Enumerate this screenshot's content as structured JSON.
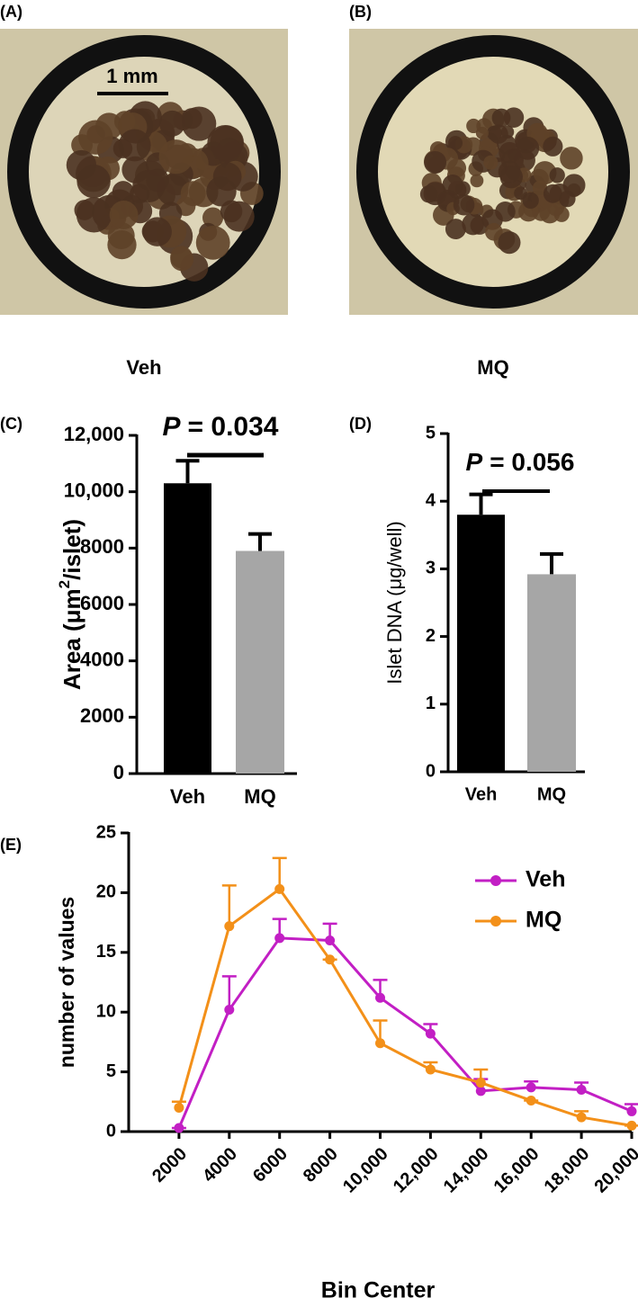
{
  "panels": {
    "a": {
      "label": "(A)",
      "scale_bar": "1 mm",
      "caption": "Veh"
    },
    "b": {
      "label": "(B)",
      "caption": "MQ"
    }
  },
  "chart_data": [
    {
      "type": "bar",
      "panel_label": "(C)",
      "annotation_symbol": "P",
      "annotation": "= 0.034",
      "ylabel": [
        "Area (μm",
        "2",
        "/islet)"
      ],
      "categories": [
        "Veh",
        "MQ"
      ],
      "values": [
        10300,
        7900
      ],
      "errors": [
        800,
        600
      ],
      "colors": [
        "#000000",
        "#a6a6a6"
      ],
      "ylim": [
        0,
        12000
      ],
      "yticks": [
        0,
        2000,
        4000,
        6000,
        8000,
        {
          "value": 10000,
          "label": "10,000"
        },
        {
          "value": 12000,
          "label": "12,000"
        }
      ]
    },
    {
      "type": "bar",
      "panel_label": "(D)",
      "annotation_symbol": "P",
      "annotation": "= 0.056",
      "ylabel": [
        "Islet DNA (μg/well)"
      ],
      "categories": [
        "Veh",
        "MQ"
      ],
      "values": [
        3.8,
        2.92
      ],
      "errors": [
        0.3,
        0.3
      ],
      "colors": [
        "#000000",
        "#a6a6a6"
      ],
      "ylim": [
        0,
        5
      ],
      "yticks": [
        0,
        1,
        2,
        3,
        4,
        5
      ]
    },
    {
      "type": "line",
      "panel_label": "(E)",
      "xlabel": "Bin Center",
      "ylabel": "number of values",
      "x": [
        2000,
        4000,
        6000,
        8000,
        10000,
        12000,
        14000,
        16000,
        18000,
        20000
      ],
      "series": [
        {
          "name": "Veh",
          "color": "#c21fc4",
          "values": [
            0.3,
            10.2,
            16.2,
            16.0,
            11.2,
            8.2,
            3.4,
            3.7,
            3.5,
            1.7
          ],
          "errors": [
            0,
            2.8,
            1.6,
            1.4,
            1.5,
            0.8,
            1.0,
            0.5,
            0.6,
            0.6
          ]
        },
        {
          "name": "MQ",
          "color": "#f39019",
          "values": [
            2.0,
            17.2,
            20.3,
            14.4,
            7.4,
            5.2,
            4.1,
            2.6,
            1.2,
            0.5
          ],
          "errors": [
            0.5,
            3.4,
            2.6,
            0,
            1.9,
            0.6,
            1.1,
            0,
            0.5,
            0
          ]
        }
      ],
      "xlim": [
        0,
        20000
      ],
      "ylim": [
        0,
        25
      ],
      "xticks": [
        2000,
        4000,
        6000,
        8000,
        {
          "value": 10000,
          "label": "10,000"
        },
        {
          "value": 12000,
          "label": "12,000"
        },
        {
          "value": 14000,
          "label": "14,000"
        },
        {
          "value": 16000,
          "label": "16,000"
        },
        {
          "value": 18000,
          "label": "18,000"
        },
        {
          "value": 20000,
          "label": "20,000"
        }
      ],
      "yticks": [
        0,
        5,
        10,
        15,
        20,
        25
      ],
      "legend": "upper right"
    }
  ]
}
